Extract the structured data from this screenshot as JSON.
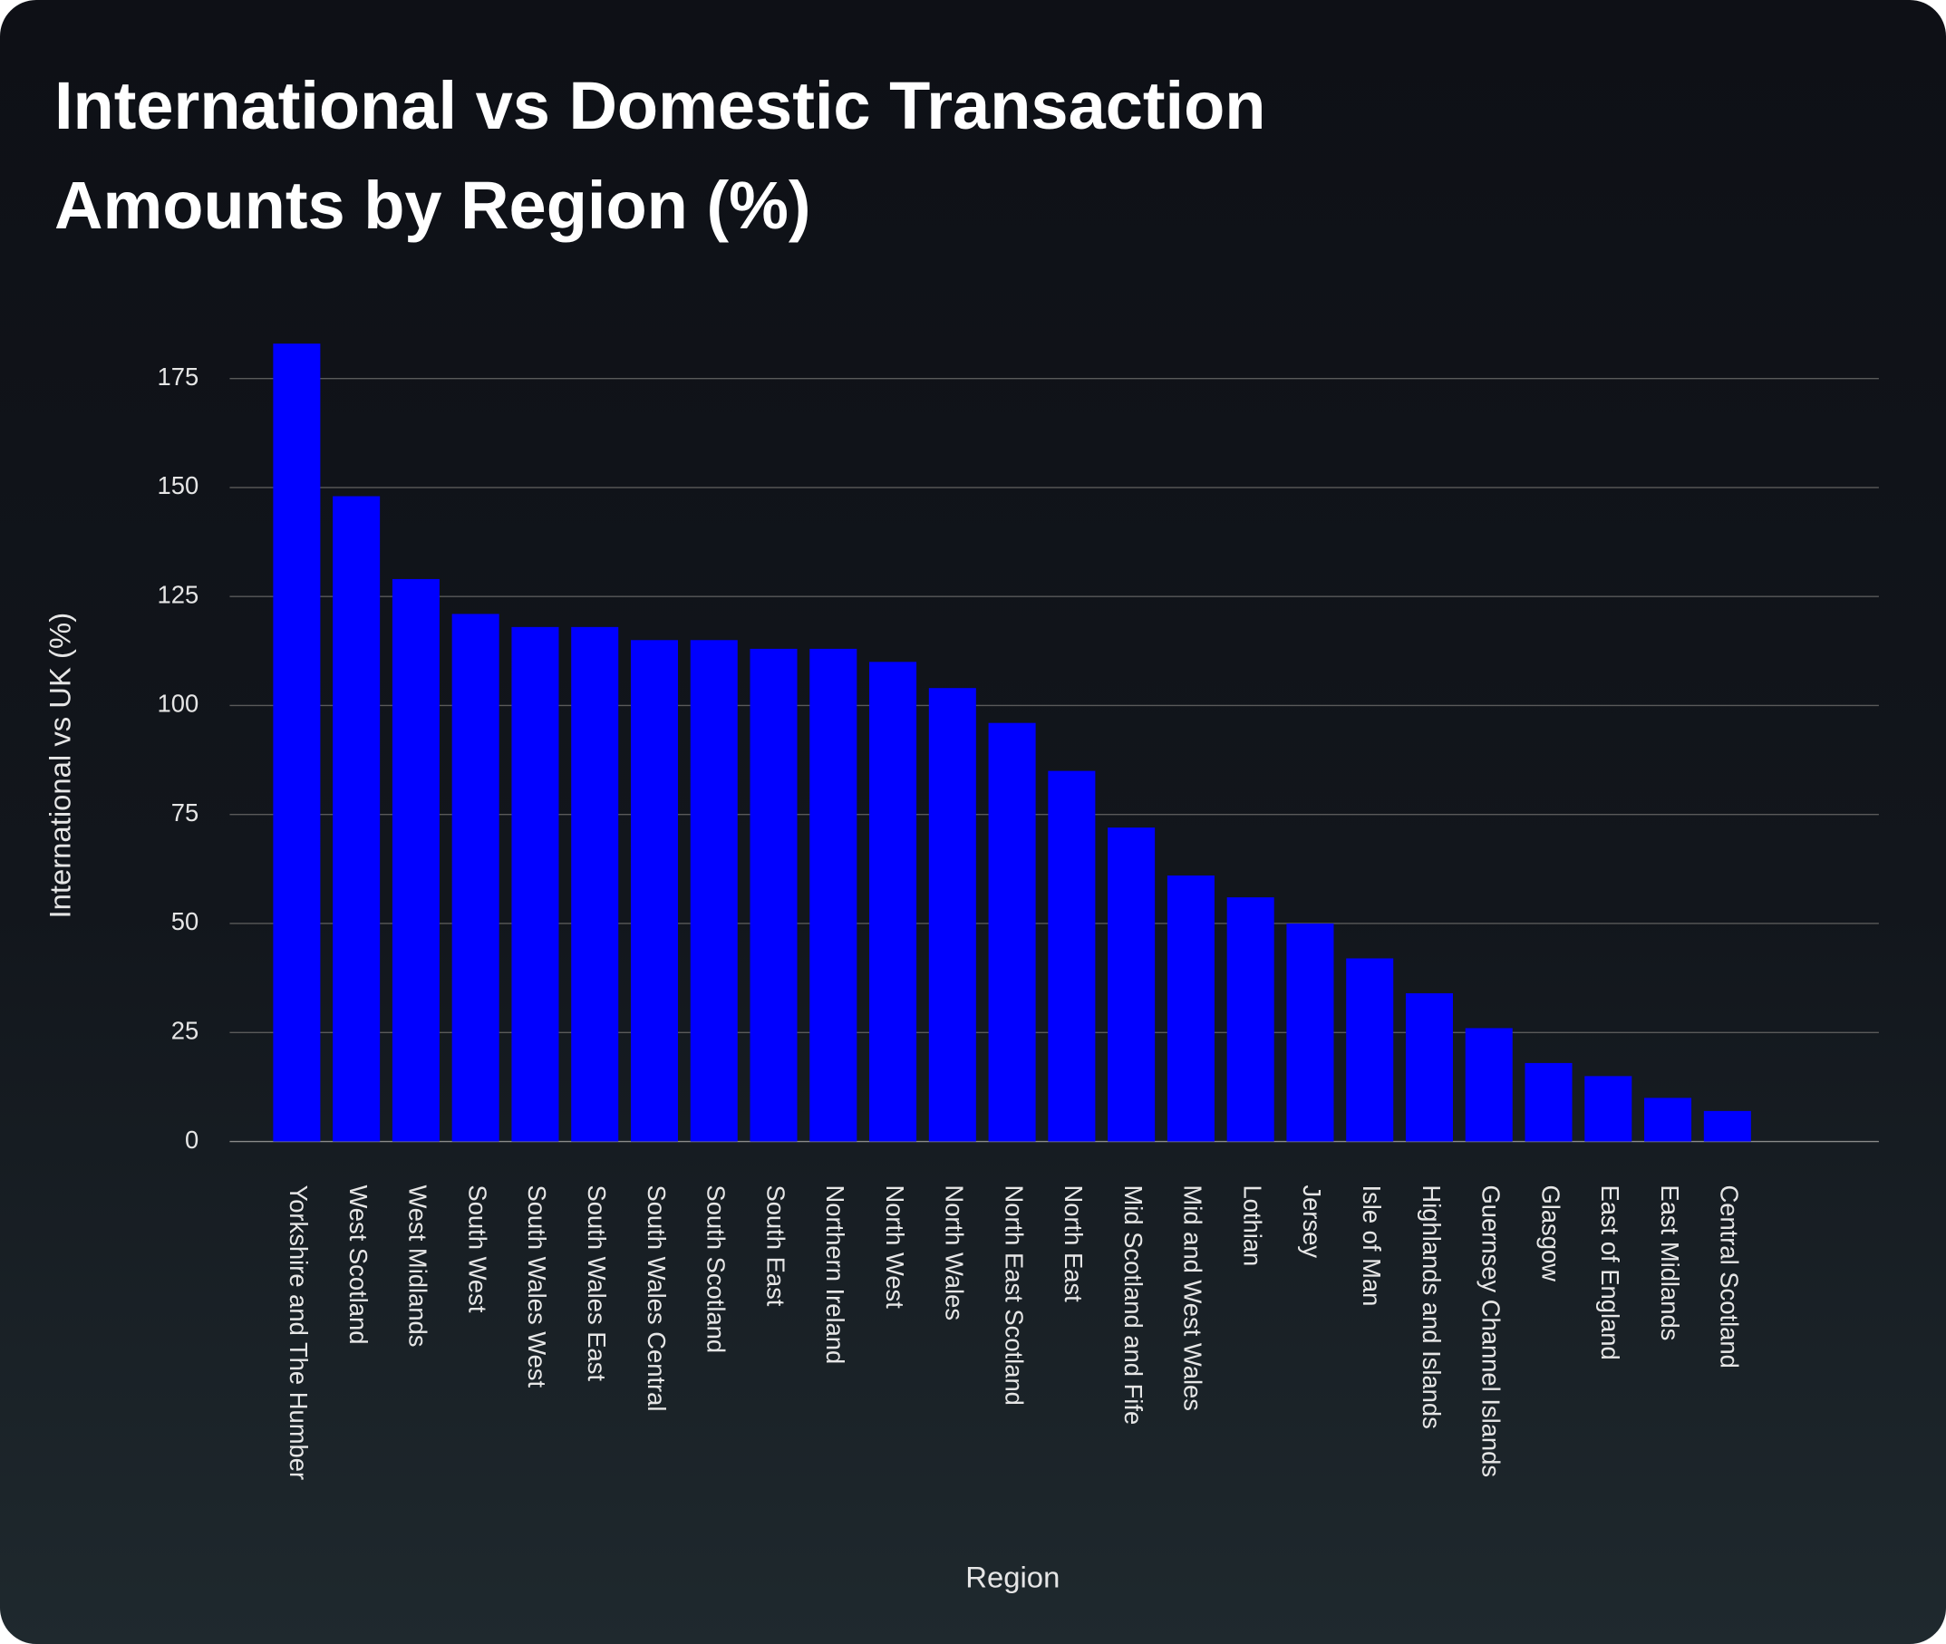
{
  "chart_data": {
    "type": "bar",
    "title": "International vs Domestic Transaction Amounts by Region (%)",
    "x_label": "Region",
    "y_label": "International vs UK (%)",
    "categories": [
      "Yorkshire and The Humber",
      "West Scotland",
      "West Midlands",
      "South West",
      "South Wales West",
      "South Wales East",
      "South Wales Central",
      "South Scotland",
      "South East",
      "Northern Ireland",
      "North West",
      "North Wales",
      "North East Scotland",
      "North East",
      "Mid Scotland and Fife",
      "Mid and West Wales",
      "Lothian",
      "Jersey",
      "Isle of Man",
      "Highlands and Islands",
      "Guernsey Channel Islands",
      "Glasgow",
      "East of England",
      "East Midlands",
      "Central Scotland"
    ],
    "values": [
      183,
      148,
      129,
      121,
      118,
      118,
      115,
      115,
      113,
      113,
      110,
      104,
      96,
      85,
      72,
      61,
      56,
      50,
      42,
      34,
      26,
      18,
      15,
      10,
      7
    ],
    "color": "#0000ff",
    "ylim": [
      0,
      185
    ],
    "yticks": [
      0,
      25,
      50,
      75,
      100,
      125,
      150,
      175
    ],
    "grid": true
  }
}
